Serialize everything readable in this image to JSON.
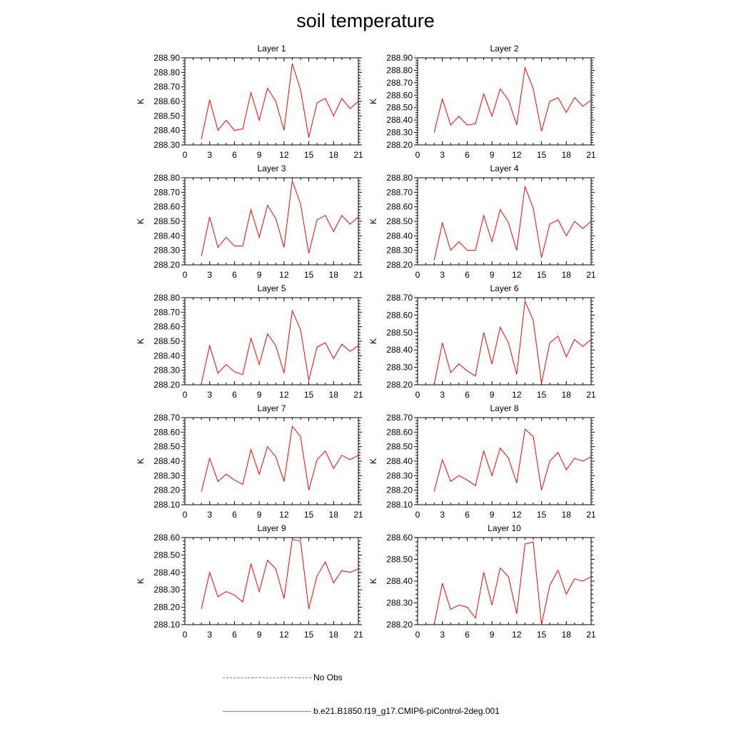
{
  "title": "soil temperature",
  "legend": [
    {
      "label": "No Obs",
      "color": "#6f74c9",
      "style": "dashed"
    },
    {
      "label": "b.e21.B1850.f19_g17.CMIP6-piControl-2deg.001",
      "color": "#ff0000",
      "style": "solid"
    }
  ],
  "colors": {
    "series": "#ff0000",
    "axis": "#000000"
  },
  "chart_data": [
    {
      "type": "line",
      "title": "Layer 1",
      "ylabel": "K",
      "xlim": [
        0,
        21
      ],
      "ylim": [
        288.3,
        288.9
      ],
      "xticks": [
        "0",
        "3",
        "6",
        "9",
        "12",
        "15",
        "18",
        "21"
      ],
      "yticks": [
        "288.30",
        "288.40",
        "288.50",
        "288.60",
        "288.70",
        "288.80",
        "288.90"
      ],
      "series": [
        {
          "x": [
            2,
            3,
            4,
            5,
            6,
            7,
            8,
            9,
            10,
            11,
            12,
            13,
            14,
            15,
            16,
            17,
            18,
            19,
            20,
            21
          ],
          "values": [
            288.34,
            288.61,
            288.4,
            288.47,
            288.4,
            288.41,
            288.66,
            288.47,
            288.69,
            288.6,
            288.4,
            288.86,
            288.68,
            288.35,
            288.59,
            288.62,
            288.5,
            288.62,
            288.55,
            288.6
          ]
        }
      ]
    },
    {
      "type": "line",
      "title": "Layer 2",
      "ylabel": "K",
      "xlim": [
        0,
        21
      ],
      "ylim": [
        288.2,
        288.9
      ],
      "xticks": [
        "0",
        "3",
        "6",
        "9",
        "12",
        "15",
        "18",
        "21"
      ],
      "yticks": [
        "288.20",
        "288.30",
        "288.40",
        "288.50",
        "288.60",
        "288.70",
        "288.80",
        "288.90"
      ],
      "series": [
        {
          "x": [
            2,
            3,
            4,
            5,
            6,
            7,
            8,
            9,
            10,
            11,
            12,
            13,
            14,
            15,
            16,
            17,
            18,
            19,
            20,
            21
          ],
          "values": [
            288.3,
            288.57,
            288.36,
            288.43,
            288.36,
            288.37,
            288.61,
            288.43,
            288.65,
            288.56,
            288.36,
            288.82,
            288.65,
            288.31,
            288.55,
            288.58,
            288.46,
            288.58,
            288.51,
            288.56
          ]
        }
      ]
    },
    {
      "type": "line",
      "title": "Layer 3",
      "ylabel": "K",
      "xlim": [
        0,
        21
      ],
      "ylim": [
        288.2,
        288.8
      ],
      "xticks": [
        "0",
        "3",
        "6",
        "9",
        "12",
        "15",
        "18",
        "21"
      ],
      "yticks": [
        "288.20",
        "288.30",
        "288.40",
        "288.50",
        "288.60",
        "288.70",
        "288.80"
      ],
      "series": [
        {
          "x": [
            2,
            3,
            4,
            5,
            6,
            7,
            8,
            9,
            10,
            11,
            12,
            13,
            14,
            15,
            16,
            17,
            18,
            19,
            20,
            21
          ],
          "values": [
            288.26,
            288.53,
            288.32,
            288.39,
            288.33,
            288.33,
            288.58,
            288.39,
            288.61,
            288.52,
            288.32,
            288.78,
            288.62,
            288.28,
            288.51,
            288.54,
            288.43,
            288.54,
            288.48,
            288.53
          ]
        }
      ]
    },
    {
      "type": "line",
      "title": "Layer 4",
      "ylabel": "K",
      "xlim": [
        0,
        21
      ],
      "ylim": [
        288.2,
        288.8
      ],
      "xticks": [
        "0",
        "3",
        "6",
        "9",
        "12",
        "15",
        "18",
        "21"
      ],
      "yticks": [
        "288.20",
        "288.30",
        "288.40",
        "288.50",
        "288.60",
        "288.70",
        "288.80"
      ],
      "series": [
        {
          "x": [
            2,
            3,
            4,
            5,
            6,
            7,
            8,
            9,
            10,
            11,
            12,
            13,
            14,
            15,
            16,
            17,
            18,
            19,
            20,
            21
          ],
          "values": [
            288.23,
            288.49,
            288.3,
            288.36,
            288.3,
            288.3,
            288.54,
            288.36,
            288.58,
            288.49,
            288.3,
            288.74,
            288.59,
            288.25,
            288.48,
            288.51,
            288.4,
            288.5,
            288.45,
            288.5
          ]
        }
      ]
    },
    {
      "type": "line",
      "title": "Layer 5",
      "ylabel": "K",
      "xlim": [
        0,
        21
      ],
      "ylim": [
        288.2,
        288.8
      ],
      "xticks": [
        "0",
        "3",
        "6",
        "9",
        "12",
        "15",
        "18",
        "21"
      ],
      "yticks": [
        "288.20",
        "288.30",
        "288.40",
        "288.50",
        "288.60",
        "288.70",
        "288.80"
      ],
      "series": [
        {
          "x": [
            2,
            3,
            4,
            5,
            6,
            7,
            8,
            9,
            10,
            11,
            12,
            13,
            14,
            15,
            16,
            17,
            18,
            19,
            20,
            21
          ],
          "values": [
            288.21,
            288.47,
            288.28,
            288.34,
            288.29,
            288.27,
            288.52,
            288.34,
            288.55,
            288.47,
            288.28,
            288.71,
            288.58,
            288.23,
            288.46,
            288.49,
            288.38,
            288.48,
            288.43,
            288.47
          ]
        }
      ]
    },
    {
      "type": "line",
      "title": "Layer 6",
      "ylabel": "K",
      "xlim": [
        0,
        21
      ],
      "ylim": [
        288.2,
        288.7
      ],
      "xticks": [
        "0",
        "3",
        "6",
        "9",
        "12",
        "15",
        "18",
        "21"
      ],
      "yticks": [
        "288.20",
        "288.30",
        "288.40",
        "288.50",
        "288.60",
        "288.70"
      ],
      "series": [
        {
          "x": [
            2,
            3,
            4,
            5,
            6,
            7,
            8,
            9,
            10,
            11,
            12,
            13,
            14,
            15,
            16,
            17,
            18,
            19,
            20,
            21
          ],
          "values": [
            288.2,
            288.44,
            288.27,
            288.32,
            288.28,
            288.25,
            288.5,
            288.32,
            288.53,
            288.44,
            288.26,
            288.68,
            288.57,
            288.21,
            288.44,
            288.48,
            288.36,
            288.46,
            288.42,
            288.46
          ]
        }
      ]
    },
    {
      "type": "line",
      "title": "Layer 7",
      "ylabel": "K",
      "xlim": [
        0,
        21
      ],
      "ylim": [
        288.1,
        288.7
      ],
      "xticks": [
        "0",
        "3",
        "6",
        "9",
        "12",
        "15",
        "18",
        "21"
      ],
      "yticks": [
        "288.10",
        "288.20",
        "288.30",
        "288.40",
        "288.50",
        "288.60",
        "288.70"
      ],
      "series": [
        {
          "x": [
            2,
            3,
            4,
            5,
            6,
            7,
            8,
            9,
            10,
            11,
            12,
            13,
            14,
            15,
            16,
            17,
            18,
            19,
            20,
            21
          ],
          "values": [
            288.19,
            288.42,
            288.26,
            288.31,
            288.27,
            288.24,
            288.48,
            288.31,
            288.5,
            288.43,
            288.26,
            288.64,
            288.57,
            288.2,
            288.41,
            288.47,
            288.35,
            288.44,
            288.41,
            288.44
          ]
        }
      ]
    },
    {
      "type": "line",
      "title": "Layer 8",
      "ylabel": "K",
      "xlim": [
        0,
        21
      ],
      "ylim": [
        288.1,
        288.7
      ],
      "xticks": [
        "0",
        "3",
        "6",
        "9",
        "12",
        "15",
        "18",
        "21"
      ],
      "yticks": [
        "288.10",
        "288.20",
        "288.30",
        "288.40",
        "288.50",
        "288.60",
        "288.70"
      ],
      "series": [
        {
          "x": [
            2,
            3,
            4,
            5,
            6,
            7,
            8,
            9,
            10,
            11,
            12,
            13,
            14,
            15,
            16,
            17,
            18,
            19,
            20,
            21
          ],
          "values": [
            288.19,
            288.41,
            288.26,
            288.3,
            288.27,
            288.23,
            288.47,
            288.3,
            288.49,
            288.42,
            288.25,
            288.62,
            288.57,
            288.2,
            288.4,
            288.46,
            288.34,
            288.42,
            288.4,
            288.43
          ]
        }
      ]
    },
    {
      "type": "line",
      "title": "Layer 9",
      "ylabel": "K",
      "xlim": [
        0,
        21
      ],
      "ylim": [
        288.1,
        288.6
      ],
      "xticks": [
        "0",
        "3",
        "6",
        "9",
        "12",
        "15",
        "18",
        "21"
      ],
      "yticks": [
        "288.10",
        "288.20",
        "288.30",
        "288.40",
        "288.50",
        "288.60"
      ],
      "series": [
        {
          "x": [
            2,
            3,
            4,
            5,
            6,
            7,
            8,
            9,
            10,
            11,
            12,
            13,
            14,
            15,
            16,
            17,
            18,
            19,
            20,
            21
          ],
          "values": [
            288.19,
            288.4,
            288.26,
            288.29,
            288.27,
            288.23,
            288.45,
            288.29,
            288.47,
            288.42,
            288.25,
            288.59,
            288.58,
            288.19,
            288.38,
            288.46,
            288.34,
            288.41,
            288.4,
            288.42
          ]
        }
      ]
    },
    {
      "type": "line",
      "title": "Layer 10",
      "ylabel": "K",
      "xlim": [
        0,
        21
      ],
      "ylim": [
        288.2,
        288.6
      ],
      "xticks": [
        "0",
        "3",
        "6",
        "9",
        "12",
        "15",
        "18",
        "21"
      ],
      "yticks": [
        "288.20",
        "288.30",
        "288.40",
        "288.50",
        "288.60"
      ],
      "series": [
        {
          "x": [
            2,
            3,
            4,
            5,
            6,
            7,
            8,
            9,
            10,
            11,
            12,
            13,
            14,
            15,
            16,
            17,
            18,
            19,
            20,
            21
          ],
          "values": [
            288.2,
            288.39,
            288.27,
            288.29,
            288.28,
            288.23,
            288.44,
            288.29,
            288.46,
            288.42,
            288.25,
            288.57,
            288.58,
            288.2,
            288.38,
            288.45,
            288.34,
            288.41,
            288.4,
            288.42
          ]
        }
      ]
    }
  ]
}
